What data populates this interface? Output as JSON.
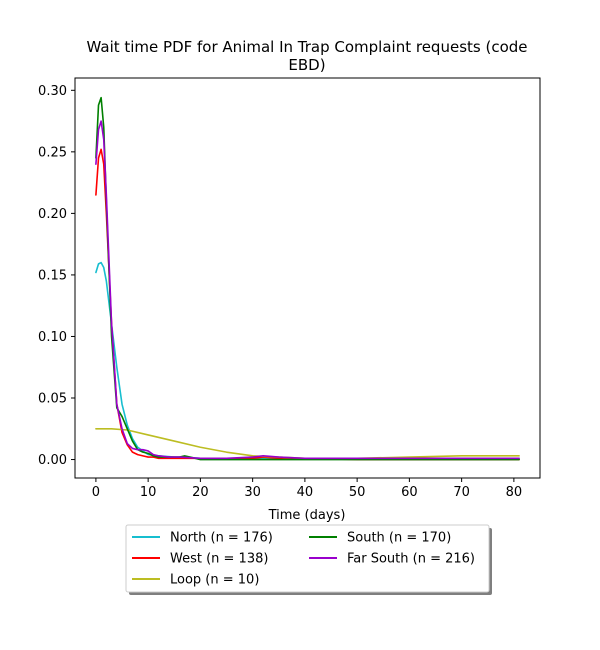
{
  "chart_data": {
    "type": "line",
    "title_line1": "Wait time PDF for Animal In Trap Complaint  requests (code",
    "title_line2": "EBD)",
    "xlabel": "Time (days)",
    "ylabel": "",
    "xlim": [
      -4,
      85
    ],
    "ylim": [
      -0.015,
      0.31
    ],
    "xticks": [
      0,
      10,
      20,
      30,
      40,
      50,
      60,
      70,
      80
    ],
    "yticks": [
      0.0,
      0.05,
      0.1,
      0.15,
      0.2,
      0.25,
      0.3
    ],
    "ytick_labels": [
      "0.00",
      "0.05",
      "0.10",
      "0.15",
      "0.20",
      "0.25",
      "0.30"
    ],
    "xtick_labels": [
      "0",
      "10",
      "20",
      "30",
      "40",
      "50",
      "60",
      "70",
      "80"
    ],
    "legend_position": "below-center",
    "grid": false,
    "series": [
      {
        "name": "North (n = 176)",
        "color": "#17becf",
        "x": [
          0,
          0.5,
          1,
          1.5,
          2,
          3,
          4,
          5,
          6,
          7,
          8,
          10,
          12,
          15,
          17,
          20,
          25,
          30,
          35,
          40,
          50,
          60,
          70,
          81
        ],
        "y": [
          0.152,
          0.159,
          0.16,
          0.156,
          0.145,
          0.11,
          0.075,
          0.045,
          0.028,
          0.017,
          0.01,
          0.004,
          0.003,
          0.002,
          0.002,
          0.001,
          0.001,
          0.001,
          0.001,
          0.001,
          0.001,
          0.001,
          0.001,
          0.001
        ]
      },
      {
        "name": "West (n = 138)",
        "color": "#ff0000",
        "x": [
          0,
          0.5,
          1,
          1.5,
          2,
          3,
          4,
          5,
          6,
          7,
          8,
          9,
          10,
          11,
          12,
          13,
          14,
          15,
          17,
          20,
          25,
          30,
          32,
          35,
          40,
          50,
          60,
          70,
          81
        ],
        "y": [
          0.215,
          0.245,
          0.252,
          0.24,
          0.2,
          0.11,
          0.045,
          0.022,
          0.012,
          0.006,
          0.004,
          0.003,
          0.002,
          0.002,
          0.001,
          0.001,
          0.001,
          0.001,
          0.001,
          0.001,
          0.001,
          0.001,
          0.002,
          0.001,
          0.001,
          0.0,
          0.0,
          0.0,
          0.0
        ]
      },
      {
        "name": "Loop (n = 10)",
        "color": "#bcbd22",
        "x": [
          0,
          3,
          6,
          10,
          15,
          20,
          25,
          30,
          35,
          40,
          50,
          60,
          70,
          81
        ],
        "y": [
          0.025,
          0.025,
          0.024,
          0.02,
          0.015,
          0.01,
          0.006,
          0.003,
          0.002,
          0.001,
          0.001,
          0.002,
          0.003,
          0.003
        ]
      },
      {
        "name": "South (n = 170)",
        "color": "#008000",
        "x": [
          0,
          0.5,
          1,
          1.5,
          2,
          3,
          4,
          5,
          6,
          7,
          8,
          9,
          10,
          11,
          12,
          13,
          14,
          15,
          16,
          17,
          18,
          20,
          25,
          30,
          40,
          50,
          60,
          70,
          81
        ],
        "y": [
          0.245,
          0.288,
          0.294,
          0.27,
          0.21,
          0.1,
          0.042,
          0.035,
          0.025,
          0.015,
          0.008,
          0.006,
          0.005,
          0.003,
          0.002,
          0.002,
          0.002,
          0.002,
          0.002,
          0.003,
          0.002,
          0.0,
          0.0,
          0.0,
          0.0,
          0.0,
          0.0,
          0.0,
          0.0
        ]
      },
      {
        "name": "Far South (n = 216)",
        "color": "#9900cc",
        "x": [
          0,
          0.5,
          1,
          1.5,
          2,
          3,
          4,
          5,
          6,
          7,
          8,
          9,
          10,
          11,
          12,
          14,
          16,
          20,
          25,
          30,
          32,
          35,
          40,
          50,
          60,
          70,
          81
        ],
        "y": [
          0.24,
          0.268,
          0.275,
          0.26,
          0.215,
          0.11,
          0.045,
          0.025,
          0.013,
          0.009,
          0.008,
          0.008,
          0.007,
          0.004,
          0.003,
          0.002,
          0.002,
          0.001,
          0.001,
          0.002,
          0.003,
          0.002,
          0.001,
          0.001,
          0.001,
          0.001,
          0.001
        ]
      }
    ]
  }
}
